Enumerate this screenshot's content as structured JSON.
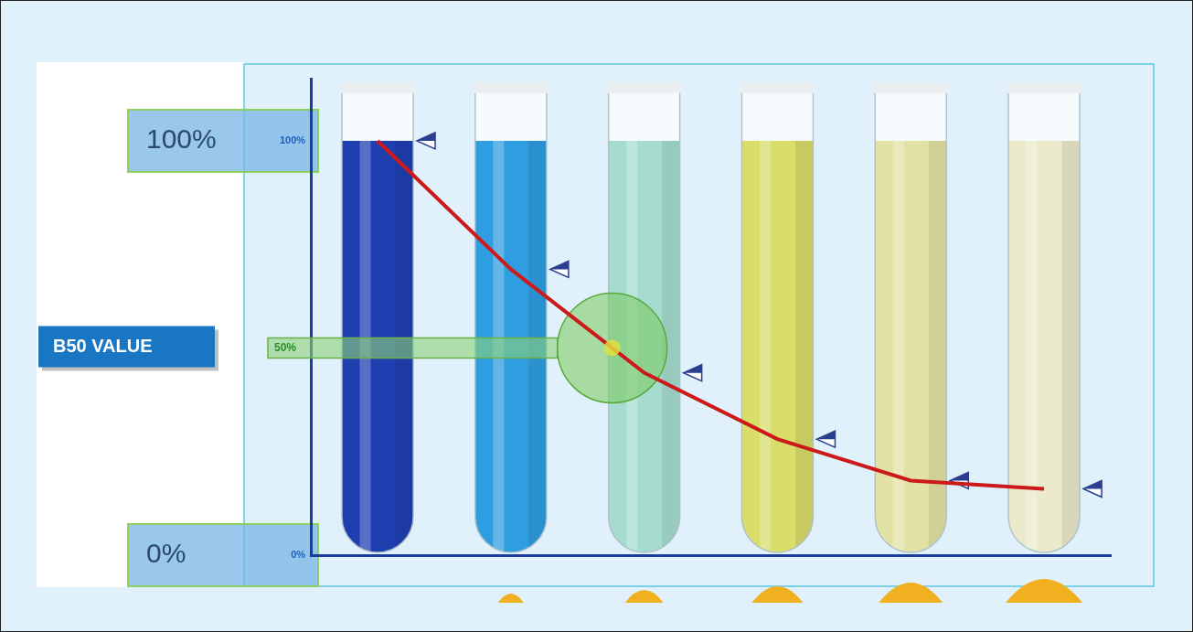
{
  "chart_data": {
    "type": "line",
    "categories": [
      null,
      null,
      null,
      null,
      null,
      null
    ],
    "values": [
      100,
      69,
      44,
      28,
      18,
      16
    ],
    "color": "#cc1a1a",
    "colors": [
      "#1f3fb0",
      "#2f9ee0",
      "#a6dccf",
      "#d9dd6a",
      "#e2e2a6",
      "#ebeacb"
    ],
    "marker": "triangle",
    "ylim": [
      0,
      115
    ],
    "yticks": [
      {
        "value": 0,
        "label": "0%"
      },
      {
        "value": 100,
        "label": "100%"
      }
    ],
    "grid": false,
    "tick_labels": "y",
    "annotations": [
      {
        "text": "B50 VALUE"
      },
      {
        "text": "50%",
        "y": 50
      }
    ]
  }
}
